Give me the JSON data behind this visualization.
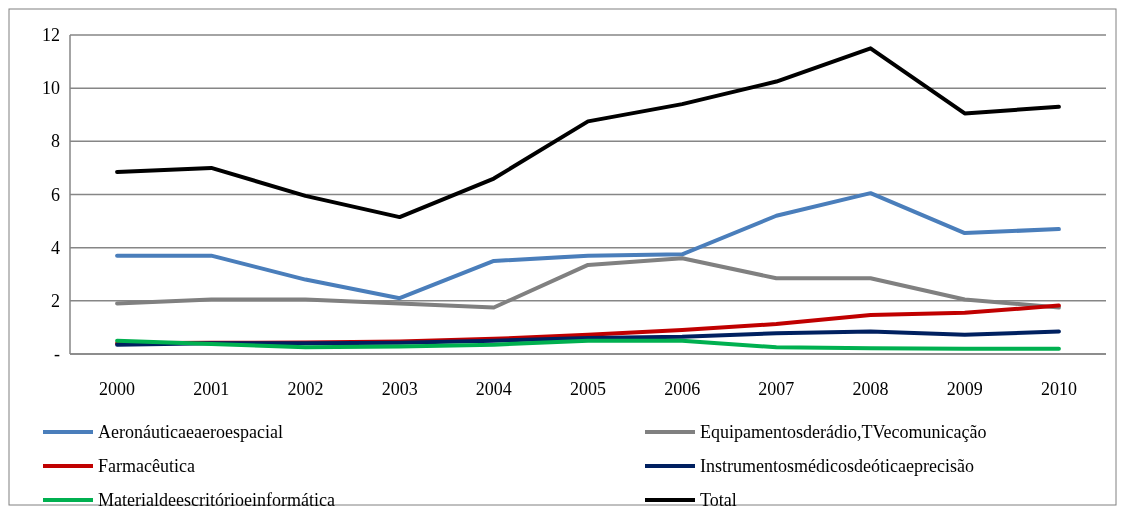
{
  "chart_data": {
    "type": "line",
    "categories": [
      "2000",
      "2001",
      "2002",
      "2003",
      "2004",
      "2005",
      "2006",
      "2007",
      "2008",
      "2009",
      "2010"
    ],
    "ylim": [
      0,
      12
    ],
    "yticks": [
      {
        "value": 0,
        "label": "-"
      },
      2,
      4,
      6,
      8,
      10,
      12
    ],
    "grid": "y",
    "legend": "bottom",
    "marker": "none",
    "line_style": "solid",
    "series": [
      {
        "name": "Aeronáuticaeaeroespacial",
        "color": "#4a7ebb",
        "values": [
          3.7,
          3.7,
          2.8,
          2.1,
          3.5,
          3.7,
          3.75,
          5.2,
          6.05,
          4.55,
          4.7
        ]
      },
      {
        "name": "Equipamentosderádio,TVecomunicação",
        "color": "#808080",
        "values": [
          1.9,
          2.05,
          2.05,
          1.9,
          1.75,
          3.35,
          3.6,
          2.85,
          2.85,
          2.05,
          1.75
        ]
      },
      {
        "name": "Farmacêutica",
        "color": "#c00000",
        "values": [
          0.4,
          0.42,
          0.43,
          0.47,
          0.57,
          0.72,
          0.9,
          1.13,
          1.47,
          1.55,
          1.82
        ]
      },
      {
        "name": "Instrumentosmédicosdeóticaeprecisão",
        "color": "#002060",
        "values": [
          0.35,
          0.4,
          0.4,
          0.42,
          0.5,
          0.6,
          0.65,
          0.78,
          0.85,
          0.72,
          0.85
        ]
      },
      {
        "name": "Materialdeescritórioeinformática",
        "color": "#00b050",
        "values": [
          0.5,
          0.38,
          0.25,
          0.28,
          0.35,
          0.5,
          0.5,
          0.25,
          0.22,
          0.2,
          0.2
        ]
      },
      {
        "name": "Total",
        "color": "#000000",
        "values": [
          6.85,
          7.0,
          5.95,
          5.15,
          6.6,
          8.75,
          9.4,
          10.25,
          11.5,
          9.05,
          9.3
        ]
      }
    ]
  }
}
